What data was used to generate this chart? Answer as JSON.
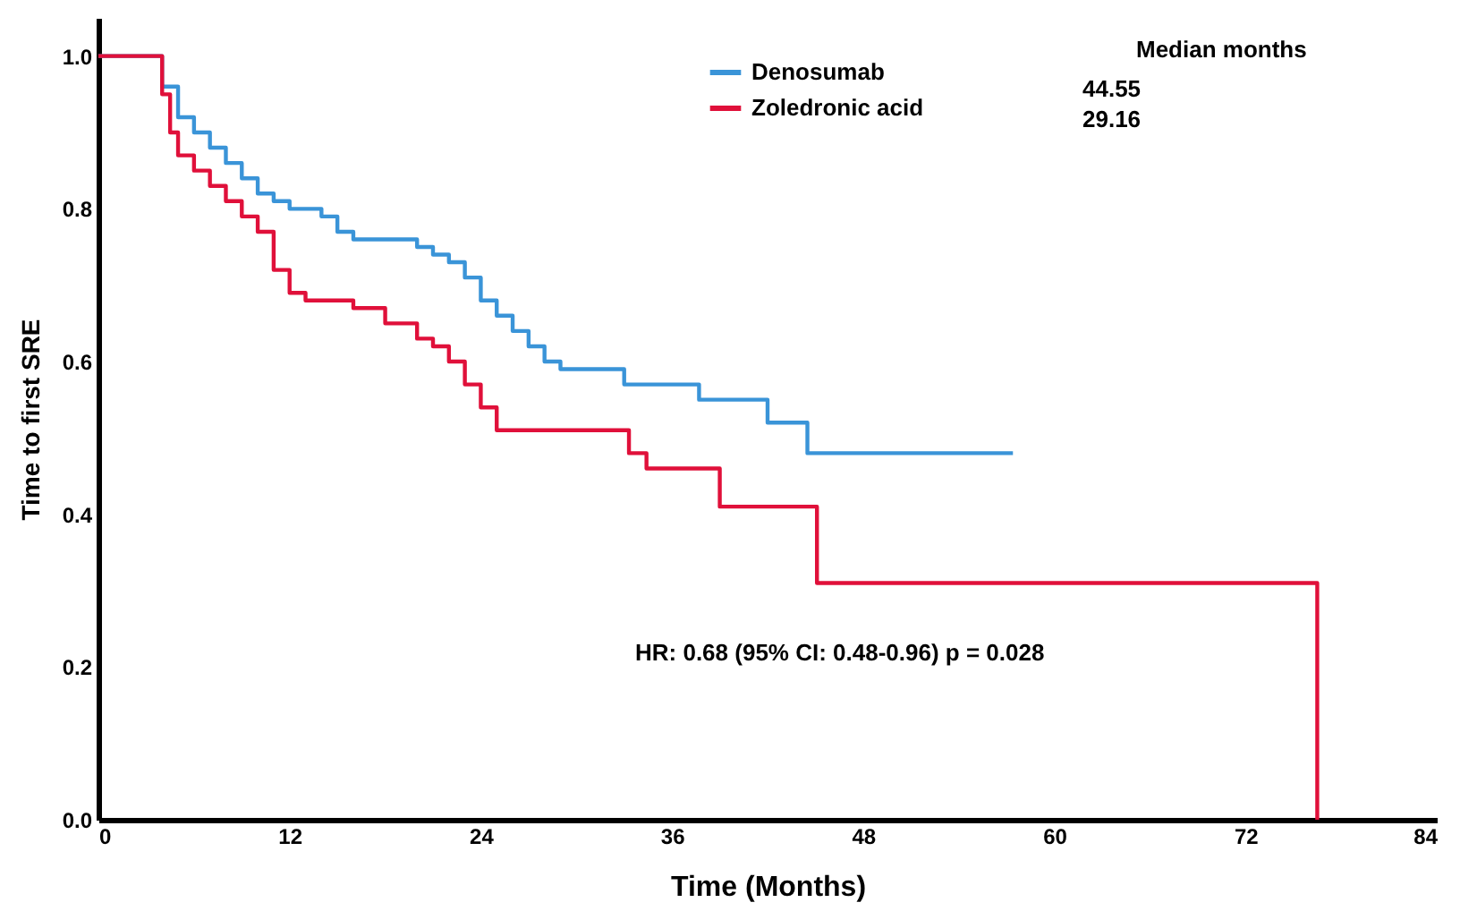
{
  "chart_data": {
    "type": "step",
    "xlabel": "Time (Months)",
    "ylabel": "Time to first SRE",
    "xlim": [
      0,
      84
    ],
    "xticks": [
      0,
      12,
      24,
      36,
      48,
      60,
      72,
      84
    ],
    "ylim": [
      0,
      1.05
    ],
    "yticks": [
      {
        "value": 0,
        "label": "0.0"
      },
      {
        "value": 0.2,
        "label": "0.2"
      },
      {
        "value": 0.4,
        "label": "0.4"
      },
      {
        "value": 0.6,
        "label": "0.6"
      },
      {
        "value": 0.8,
        "label": "0.8"
      },
      {
        "value": 1,
        "label": "1.0"
      }
    ],
    "grid": false,
    "legend": "top right",
    "line_style": "solid",
    "marker": "none",
    "legend_title": "Median months",
    "series": [
      {
        "name": "Denosumab",
        "color": "#3a94d8",
        "x": [
          0,
          3,
          4,
          5,
          6,
          7,
          8,
          9,
          10,
          11,
          12,
          14,
          15,
          16,
          20,
          21,
          22,
          23,
          24,
          25,
          26,
          27,
          28,
          29,
          33,
          37.7,
          42,
          44.5,
          57.4
        ],
        "values": [
          1,
          1,
          0.96,
          0.92,
          0.9,
          0.88,
          0.86,
          0.84,
          0.82,
          0.81,
          0.8,
          0.79,
          0.77,
          0.76,
          0.75,
          0.74,
          0.73,
          0.71,
          0.68,
          0.66,
          0.64,
          0.62,
          0.6,
          0.59,
          0.57,
          0.55,
          0.52,
          0.48,
          0.48
        ]
      },
      {
        "name": "Zoledronic acid",
        "color": "#e0103a",
        "x": [
          0,
          3.5,
          4,
          4.5,
          5,
          6,
          7,
          8,
          9,
          10,
          11,
          12,
          13,
          16,
          18,
          20,
          21,
          22,
          23,
          24,
          25,
          33.3,
          34.4,
          39,
          45.1,
          76.5,
          76.5
        ],
        "values": [
          1,
          1,
          0.95,
          0.9,
          0.87,
          0.85,
          0.83,
          0.81,
          0.79,
          0.77,
          0.72,
          0.69,
          0.68,
          0.67,
          0.65,
          0.63,
          0.62,
          0.6,
          0.57,
          0.54,
          0.51,
          0.48,
          0.46,
          0.41,
          0.31,
          0.31,
          0
        ]
      }
    ],
    "annotations": [
      "44.55",
      "29.16",
      "HR: 0.68 (95% CI: 0.48-0.96) p = 0.028"
    ]
  }
}
